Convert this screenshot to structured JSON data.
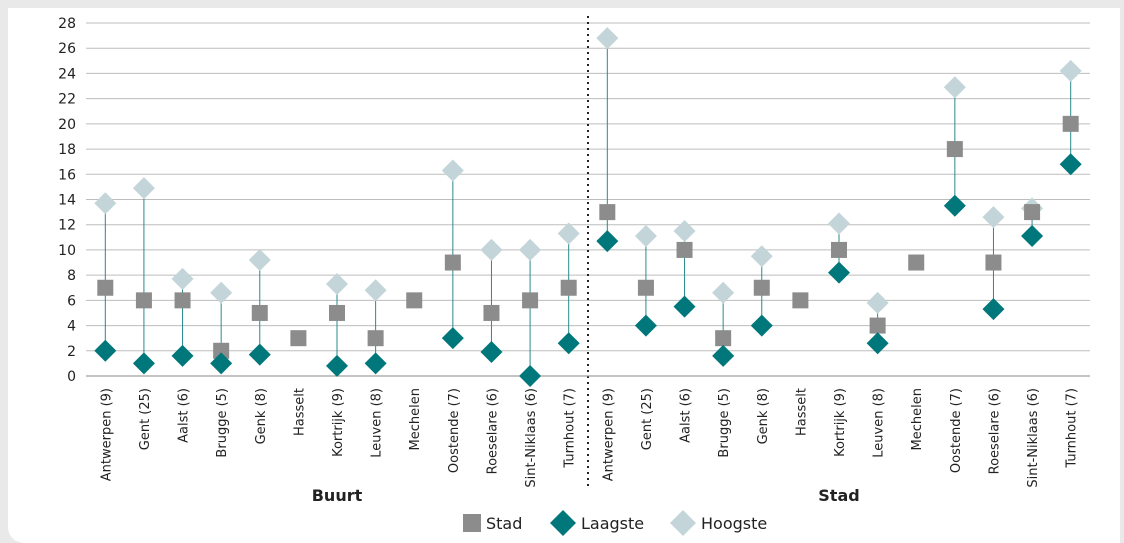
{
  "chart_data": {
    "type": "scatter",
    "ylim": [
      0,
      28
    ],
    "yticks": [
      0,
      2,
      4,
      6,
      8,
      10,
      12,
      14,
      16,
      18,
      20,
      22,
      24,
      26,
      28
    ],
    "groups": [
      {
        "label": "Buurt",
        "categories": [
          "Antwerpen (9)",
          "Gent (25)",
          "Aalst (6)",
          "Brugge (5)",
          "Genk (8)",
          "Hasselt",
          "Kortrijk (9)",
          "Leuven (8)",
          "Mechelen",
          "Oostende (7)",
          "Roeselare (6)",
          "Sint-Niklaas (6)",
          "Turnhout (7)"
        ]
      },
      {
        "label": "Stad",
        "categories": [
          "Antwerpen (9)",
          "Gent (25)",
          "Aalst (6)",
          "Brugge (5)",
          "Genk (8)",
          "Hasselt",
          "Kortrijk (9)",
          "Leuven (8)",
          "Mechelen",
          "Oostende (7)",
          "Roeselare (6)",
          "Sint-Niklaas (6)",
          "Turnhout (7)"
        ]
      }
    ],
    "series": [
      {
        "name": "Stad",
        "color": "#8c8c8c",
        "marker": "square",
        "values": [
          7,
          6,
          6,
          2,
          5,
          3,
          5,
          3,
          6,
          9,
          5,
          6,
          7,
          13,
          7,
          10,
          3,
          7,
          6,
          10,
          4,
          9,
          18,
          9,
          13,
          20
        ]
      },
      {
        "name": "Laagste",
        "color": "#00777a",
        "marker": "diamond",
        "values": [
          2,
          1,
          1.6,
          1,
          1.7,
          null,
          0.8,
          1,
          null,
          3,
          1.9,
          0,
          2.6,
          10.7,
          4,
          5.5,
          1.6,
          4,
          null,
          8.2,
          2.6,
          null,
          13.5,
          5.3,
          11.1,
          16.8
        ]
      },
      {
        "name": "Hoogste",
        "color": "#c3d5d9",
        "marker": "diamond",
        "values": [
          13.7,
          14.9,
          7.7,
          6.6,
          9.2,
          null,
          7.3,
          6.8,
          null,
          16.3,
          10,
          10,
          11.3,
          26.8,
          11.1,
          11.5,
          6.6,
          9.5,
          null,
          12.1,
          5.8,
          null,
          22.9,
          12.6,
          13.3,
          24.2
        ]
      }
    ],
    "divider_after_index": 12,
    "legend_position": "bottom"
  }
}
